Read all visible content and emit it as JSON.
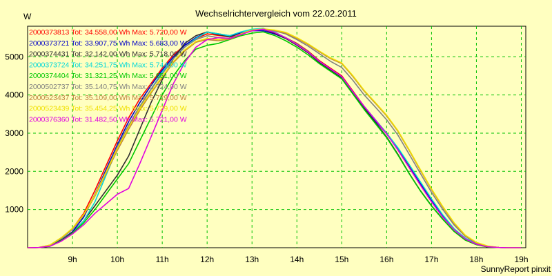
{
  "chart_data": {
    "type": "line",
    "title": "Wechselrichtervergleich vom 22.02.2011",
    "ylabel": "W",
    "footer": "SunnyReport pinxit",
    "grid": true,
    "legend_position": "top-left",
    "xlim": [
      8.0,
      19.1
    ],
    "ylim": [
      0,
      5800
    ],
    "x_ticks": [
      9,
      10,
      11,
      12,
      13,
      14,
      15,
      16,
      17,
      18,
      19
    ],
    "x_tick_labels": [
      "9h",
      "10h",
      "11h",
      "12h",
      "13h",
      "14h",
      "15h",
      "16h",
      "17h",
      "18h",
      "19h"
    ],
    "y_ticks": [
      1000,
      2000,
      3000,
      4000,
      5000
    ],
    "y_tick_labels": [
      "1000",
      "2000",
      "3000",
      "4000",
      "5000"
    ],
    "series": [
      {
        "name": "2000373813",
        "legend": "2000373813 Tot: 34.558,00 Wh Max: 5.720,00 W",
        "color": "#ff0000",
        "x": [
          8.0,
          8.25,
          8.5,
          8.75,
          9.0,
          9.25,
          9.5,
          9.75,
          10.0,
          10.25,
          10.5,
          10.75,
          11.0,
          11.25,
          11.5,
          11.75,
          12.0,
          12.25,
          12.5,
          12.75,
          13.0,
          13.25,
          13.5,
          13.75,
          14.0,
          14.25,
          14.5,
          14.75,
          15.0,
          15.25,
          15.5,
          15.75,
          16.0,
          16.25,
          16.5,
          16.75,
          17.0,
          17.25,
          17.5,
          17.75,
          18.0,
          18.25,
          18.5,
          18.75,
          19.0
        ],
        "values": [
          0,
          5,
          60,
          250,
          500,
          900,
          1500,
          2150,
          2800,
          3400,
          3900,
          4300,
          4700,
          5050,
          5300,
          5480,
          5600,
          5560,
          5520,
          5600,
          5700,
          5720,
          5630,
          5500,
          5350,
          5150,
          4900,
          4700,
          4500,
          4100,
          3700,
          3350,
          3000,
          2600,
          2150,
          1700,
          1250,
          850,
          500,
          250,
          100,
          30,
          5,
          0,
          0
        ]
      },
      {
        "name": "2000373721",
        "legend": "2000373721 Tot: 33.907,75 Wh Max: 5.683,00 W",
        "color": "#0000c8",
        "x": [
          8.0,
          8.25,
          8.5,
          8.75,
          9.0,
          9.25,
          9.5,
          9.75,
          10.0,
          10.25,
          10.5,
          10.75,
          11.0,
          11.25,
          11.5,
          11.75,
          12.0,
          12.25,
          12.5,
          12.75,
          13.0,
          13.25,
          13.5,
          13.75,
          14.0,
          14.25,
          14.5,
          14.75,
          15.0,
          15.25,
          15.5,
          15.75,
          16.0,
          16.25,
          16.5,
          16.75,
          17.0,
          17.25,
          17.5,
          17.75,
          18.0,
          18.25,
          18.5,
          18.75,
          19.0
        ],
        "values": [
          0,
          5,
          50,
          200,
          420,
          800,
          1400,
          2050,
          2700,
          3300,
          3800,
          4250,
          4650,
          5000,
          5300,
          5500,
          5650,
          5600,
          5550,
          5620,
          5680,
          5683,
          5600,
          5480,
          5320,
          5120,
          4880,
          4680,
          4480,
          4080,
          3680,
          3320,
          2980,
          2580,
          2120,
          1680,
          1230,
          830,
          480,
          240,
          95,
          28,
          5,
          0,
          0
        ]
      },
      {
        "name": "2000374431",
        "legend": "2000374431 Tot: 32.142,00 Wh Max: 5.718,00 W",
        "color": "#303030",
        "x": [
          8.0,
          8.25,
          8.5,
          8.75,
          9.0,
          9.25,
          9.5,
          9.75,
          10.0,
          10.25,
          10.5,
          10.75,
          11.0,
          11.25,
          11.5,
          11.75,
          12.0,
          12.25,
          12.5,
          12.75,
          13.0,
          13.25,
          13.5,
          13.75,
          14.0,
          14.25,
          14.5,
          14.75,
          15.0,
          15.25,
          15.5,
          15.75,
          16.0,
          16.25,
          16.5,
          16.75,
          17.0,
          17.25,
          17.5,
          17.75,
          18.0,
          18.25,
          18.5,
          18.75,
          19.0
        ],
        "values": [
          0,
          5,
          50,
          200,
          400,
          700,
          1100,
          1500,
          1900,
          2400,
          3100,
          3800,
          4400,
          4950,
          5350,
          5550,
          5650,
          5580,
          5520,
          5600,
          5700,
          5718,
          5620,
          5480,
          5300,
          5100,
          4850,
          4650,
          4450,
          4050,
          3650,
          3280,
          2900,
          2450,
          1950,
          1500,
          1100,
          750,
          430,
          200,
          80,
          20,
          5,
          0,
          0
        ]
      },
      {
        "name": "2000373724",
        "legend": "2000373724 Tot: 34.251,75 Wh Max: 5.744,00 W",
        "color": "#00d8d8",
        "x": [
          8.0,
          8.25,
          8.5,
          8.75,
          9.0,
          9.25,
          9.5,
          9.75,
          10.0,
          10.25,
          10.5,
          10.75,
          11.0,
          11.25,
          11.5,
          11.75,
          12.0,
          12.25,
          12.5,
          12.75,
          13.0,
          13.25,
          13.5,
          13.75,
          14.0,
          14.25,
          14.5,
          14.75,
          15.0,
          15.25,
          15.5,
          15.75,
          16.0,
          16.25,
          16.5,
          16.75,
          17.0,
          17.25,
          17.5,
          17.75,
          18.0,
          18.25,
          18.5,
          18.75,
          19.0
        ],
        "values": [
          0,
          5,
          40,
          180,
          380,
          700,
          1200,
          1900,
          2600,
          3200,
          3700,
          4150,
          4600,
          4950,
          5250,
          5480,
          5650,
          5600,
          5550,
          5650,
          5720,
          5744,
          5650,
          5500,
          5330,
          5130,
          4880,
          4680,
          4480,
          4080,
          3700,
          3350,
          3000,
          2620,
          2180,
          1730,
          1280,
          860,
          500,
          250,
          100,
          30,
          5,
          0,
          0
        ]
      },
      {
        "name": "2000374404",
        "legend": "2000374404 Tot: 31.321,25 Wh Max: 5.651,00 W",
        "color": "#00c800",
        "x": [
          8.0,
          8.25,
          8.5,
          8.75,
          9.0,
          9.25,
          9.5,
          9.75,
          10.0,
          10.25,
          10.5,
          10.75,
          11.0,
          11.25,
          11.5,
          11.75,
          12.0,
          12.25,
          12.5,
          12.75,
          13.0,
          13.25,
          13.5,
          13.75,
          14.0,
          14.25,
          14.5,
          14.75,
          15.0,
          15.25,
          15.5,
          15.75,
          16.0,
          16.25,
          16.5,
          16.75,
          17.0,
          17.25,
          17.5,
          17.75,
          18.0,
          18.25,
          18.5,
          18.75,
          19.0
        ],
        "values": [
          0,
          5,
          40,
          180,
          380,
          650,
          1000,
          1400,
          1800,
          2200,
          2800,
          3400,
          4000,
          4500,
          4900,
          5200,
          5300,
          5350,
          5450,
          5550,
          5620,
          5651,
          5560,
          5420,
          5250,
          5050,
          4820,
          4620,
          4420,
          4020,
          3620,
          3250,
          2880,
          2430,
          1940,
          1490,
          1090,
          740,
          430,
          200,
          80,
          20,
          5,
          0,
          0
        ]
      },
      {
        "name": "2000502737",
        "legend": "2000502737 Tot: 35.140,75 Wh Max: 5.724,00 W",
        "color": "#808080",
        "x": [
          8.0,
          8.25,
          8.5,
          8.75,
          9.0,
          9.25,
          9.5,
          9.75,
          10.0,
          10.25,
          10.5,
          10.75,
          11.0,
          11.25,
          11.5,
          11.75,
          12.0,
          12.25,
          12.5,
          12.75,
          13.0,
          13.25,
          13.5,
          13.75,
          14.0,
          14.25,
          14.5,
          14.75,
          15.0,
          15.25,
          15.5,
          15.75,
          16.0,
          16.25,
          16.5,
          16.75,
          17.0,
          17.25,
          17.5,
          17.75,
          18.0,
          18.25,
          18.5,
          18.75,
          19.0
        ],
        "values": [
          0,
          5,
          60,
          240,
          480,
          850,
          1400,
          2000,
          2650,
          3200,
          3700,
          4150,
          4550,
          4950,
          5250,
          5450,
          5550,
          5500,
          5480,
          5580,
          5690,
          5724,
          5680,
          5600,
          5450,
          5280,
          5080,
          4880,
          4720,
          4380,
          4000,
          3680,
          3350,
          2950,
          2450,
          1950,
          1450,
          1000,
          600,
          300,
          120,
          35,
          5,
          0,
          0
        ]
      },
      {
        "name": "2000523437",
        "legend": "2000523437 Tot: 35.109,00 Wh Max: 5.729,00 W",
        "color": "#c08040",
        "x": [
          8.0,
          8.25,
          8.5,
          8.75,
          9.0,
          9.25,
          9.5,
          9.75,
          10.0,
          10.25,
          10.5,
          10.75,
          11.0,
          11.25,
          11.5,
          11.75,
          12.0,
          12.25,
          12.5,
          12.75,
          13.0,
          13.25,
          13.5,
          13.75,
          14.0,
          14.25,
          14.5,
          14.75,
          15.0,
          15.25,
          15.5,
          15.75,
          16.0,
          16.25,
          16.5,
          16.75,
          17.0,
          17.25,
          17.5,
          17.75,
          18.0,
          18.25,
          18.5,
          18.75,
          19.0
        ],
        "values": [
          0,
          5,
          70,
          260,
          500,
          850,
          1350,
          1950,
          2550,
          3100,
          3600,
          4050,
          4450,
          4850,
          5150,
          5380,
          5450,
          5420,
          5460,
          5580,
          5690,
          5729,
          5690,
          5620,
          5480,
          5320,
          5130,
          4950,
          4820,
          4480,
          4100,
          3780,
          3450,
          3050,
          2550,
          2030,
          1520,
          1060,
          640,
          320,
          130,
          40,
          5,
          0,
          0
        ]
      },
      {
        "name": "2000523439",
        "legend": "2000523439 Tot: 35.454,25 Wh Max: 5.729,00 W",
        "color": "#f0e000",
        "x": [
          8.0,
          8.25,
          8.5,
          8.75,
          9.0,
          9.25,
          9.5,
          9.75,
          10.0,
          10.25,
          10.5,
          10.75,
          11.0,
          11.25,
          11.5,
          11.75,
          12.0,
          12.25,
          12.5,
          12.75,
          13.0,
          13.25,
          13.5,
          13.75,
          14.0,
          14.25,
          14.5,
          14.75,
          15.0,
          15.25,
          15.5,
          15.75,
          16.0,
          16.25,
          16.5,
          16.75,
          17.0,
          17.25,
          17.5,
          17.75,
          18.0,
          18.25,
          18.5,
          18.75,
          19.0
        ],
        "values": [
          0,
          5,
          70,
          260,
          510,
          870,
          1380,
          1980,
          2600,
          3150,
          3650,
          4080,
          4480,
          4880,
          5180,
          5400,
          5480,
          5450,
          5480,
          5600,
          5700,
          5729,
          5700,
          5640,
          5500,
          5340,
          5150,
          4970,
          4840,
          4500,
          4120,
          3800,
          3470,
          3070,
          2570,
          2050,
          1540,
          1080,
          660,
          330,
          140,
          45,
          5,
          0,
          0
        ]
      },
      {
        "name": "2000376360",
        "legend": "2000376360 Tot: 31.482,50 Wh Max: 5.721,00 W",
        "color": "#e000e0",
        "x": [
          8.0,
          8.25,
          8.5,
          8.75,
          9.0,
          9.25,
          9.5,
          9.75,
          10.0,
          10.25,
          10.5,
          10.75,
          11.0,
          11.25,
          11.5,
          11.75,
          12.0,
          12.25,
          12.5,
          12.75,
          13.0,
          13.25,
          13.5,
          13.75,
          14.0,
          14.25,
          14.5,
          14.75,
          15.0,
          15.25,
          15.5,
          15.75,
          16.0,
          16.25,
          16.5,
          16.75,
          17.0,
          17.25,
          17.5,
          17.75,
          18.0,
          18.25,
          18.5,
          18.75,
          19.0
        ],
        "values": [
          0,
          5,
          40,
          170,
          360,
          600,
          900,
          1150,
          1400,
          1550,
          2200,
          2900,
          3600,
          4300,
          4850,
          5250,
          5450,
          5500,
          5480,
          5580,
          5680,
          5721,
          5640,
          5500,
          5320,
          5120,
          4880,
          4680,
          4480,
          4080,
          3700,
          3340,
          2980,
          2560,
          2100,
          1640,
          1200,
          800,
          470,
          230,
          90,
          25,
          5,
          0,
          0
        ]
      }
    ]
  }
}
